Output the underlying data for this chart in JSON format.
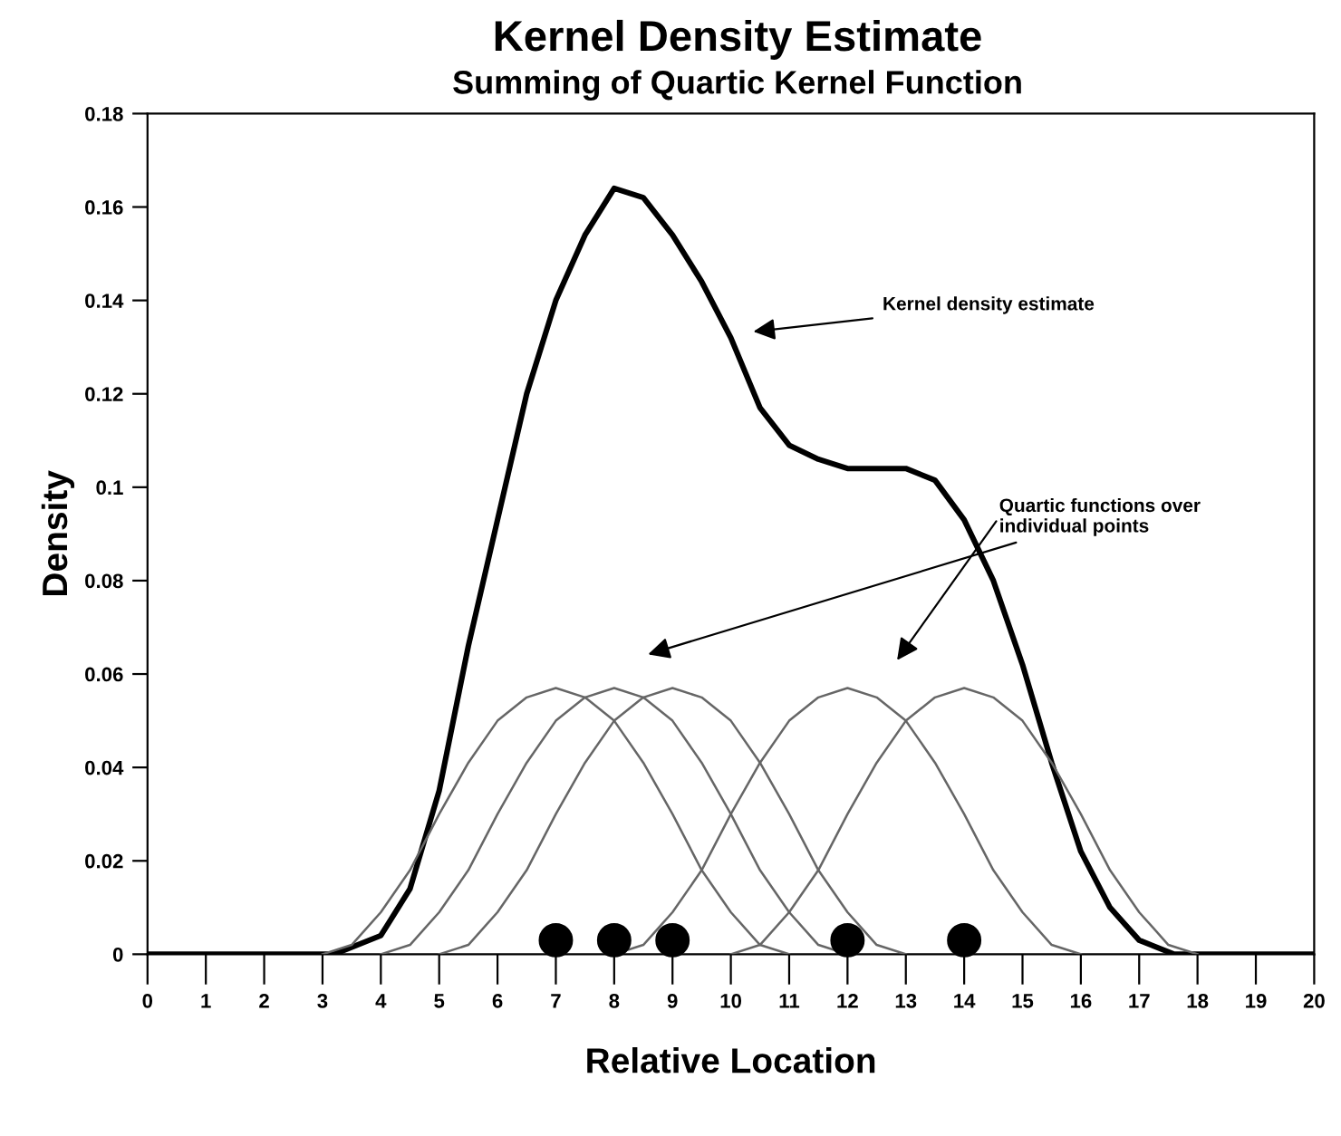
{
  "chart_data": {
    "type": "line",
    "title": "Kernel Density Estimate",
    "subtitle": "Summing of Quartic Kernel Function",
    "xlabel": "Relative Location",
    "ylabel": "Density",
    "xlim": [
      0,
      20
    ],
    "xticks": [
      0,
      1,
      2,
      3,
      4,
      5,
      6,
      7,
      8,
      9,
      10,
      11,
      12,
      13,
      14,
      15,
      16,
      17,
      18,
      19,
      20
    ],
    "ylim": [
      0,
      0.18
    ],
    "yticks": [
      0,
      0.02,
      0.04,
      0.06,
      0.08,
      0.1,
      0.12,
      0.14,
      0.16,
      0.18
    ],
    "grid": false,
    "legend": false,
    "series": [
      {
        "color": "#000000",
        "x": [
          0,
          3.2,
          4,
          4.5,
          5,
          5.5,
          6,
          6.5,
          7,
          7.5,
          8,
          8.5,
          9,
          9.5,
          10,
          10.5,
          11,
          11.5,
          12,
          13,
          13.5,
          14,
          14.5,
          15,
          15.5,
          16,
          16.5,
          17,
          17.6,
          20
        ],
        "values": [
          0,
          0,
          0.004,
          0.014,
          0.035,
          0.066,
          0.093,
          0.12,
          0.14,
          0.154,
          0.164,
          0.162,
          0.154,
          0.144,
          0.132,
          0.117,
          0.109,
          0.106,
          0.104,
          0.104,
          0.1015,
          0.093,
          0.08,
          0.062,
          0.041,
          0.022,
          0.01,
          0.003,
          0,
          0
        ]
      },
      {
        "color": "#666666",
        "x": [
          3,
          3.5,
          4,
          4.5,
          5,
          5.5,
          6,
          6.5,
          7,
          7.5,
          8,
          8.5,
          9,
          9.5,
          10,
          10.5,
          11
        ],
        "values": [
          0,
          0.002,
          0.009,
          0.018,
          0.03,
          0.041,
          0.05,
          0.055,
          0.057,
          0.055,
          0.05,
          0.041,
          0.03,
          0.018,
          0.009,
          0.002,
          0
        ]
      },
      {
        "color": "#666666",
        "x": [
          4,
          4.5,
          5,
          5.5,
          6,
          6.5,
          7,
          7.5,
          8,
          8.5,
          9,
          9.5,
          10,
          10.5,
          11,
          11.5,
          12
        ],
        "values": [
          0,
          0.002,
          0.009,
          0.018,
          0.03,
          0.041,
          0.05,
          0.055,
          0.057,
          0.055,
          0.05,
          0.041,
          0.03,
          0.018,
          0.009,
          0.002,
          0
        ]
      },
      {
        "color": "#666666",
        "x": [
          5,
          5.5,
          6,
          6.5,
          7,
          7.5,
          8,
          8.5,
          9,
          9.5,
          10,
          10.5,
          11,
          11.5,
          12,
          12.5,
          13
        ],
        "values": [
          0,
          0.002,
          0.009,
          0.018,
          0.03,
          0.041,
          0.05,
          0.055,
          0.057,
          0.055,
          0.05,
          0.041,
          0.03,
          0.018,
          0.009,
          0.002,
          0
        ]
      },
      {
        "color": "#666666",
        "x": [
          8,
          8.5,
          9,
          9.5,
          10,
          10.5,
          11,
          11.5,
          12,
          12.5,
          13,
          13.5,
          14,
          14.5,
          15,
          15.5,
          16
        ],
        "values": [
          0,
          0.002,
          0.009,
          0.018,
          0.03,
          0.041,
          0.05,
          0.055,
          0.057,
          0.055,
          0.05,
          0.041,
          0.03,
          0.018,
          0.009,
          0.002,
          0
        ]
      },
      {
        "color": "#666666",
        "x": [
          10,
          10.5,
          11,
          11.5,
          12,
          12.5,
          13,
          13.5,
          14,
          14.5,
          15,
          15.5,
          16,
          16.5,
          17,
          17.5,
          18
        ],
        "values": [
          0,
          0.002,
          0.009,
          0.018,
          0.03,
          0.041,
          0.05,
          0.055,
          0.057,
          0.055,
          0.05,
          0.041,
          0.03,
          0.018,
          0.009,
          0.002,
          0
        ]
      },
      {
        "type": "scatter",
        "color": "#000000",
        "x": [
          7,
          8,
          9,
          12,
          14
        ],
        "values": [
          0.003,
          0.003,
          0.003,
          0.003,
          0.003
        ]
      }
    ],
    "annotations": [
      "Kernel density estimate",
      "Quartic functions over\nindividual points"
    ]
  }
}
